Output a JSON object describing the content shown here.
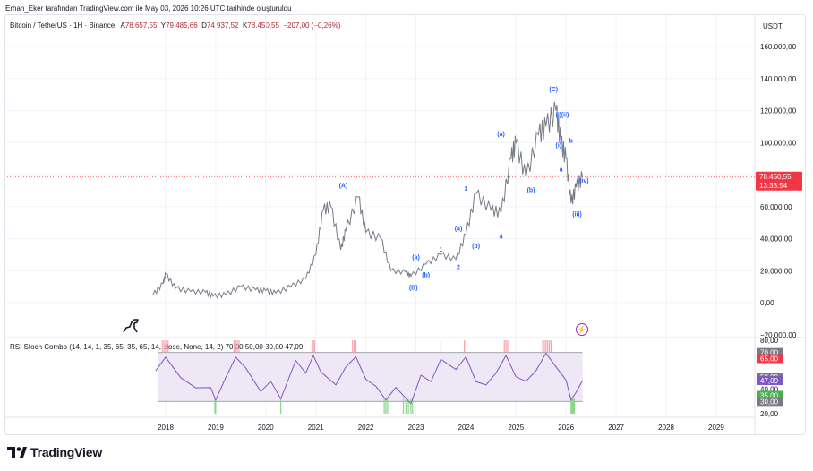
{
  "header": "Erhan_Eker tarafından TradingView.com ile May 03, 2026 10:26 UTC tarihinde oluşturuldu",
  "symbol": {
    "name": "Bitcoin / TetherUS · 1H · Binance",
    "o_label": "A",
    "o": "78.657,55",
    "h_label": "Y",
    "h": "79.485,66",
    "l_label": "D",
    "l": "74.937,52",
    "c_label": "K",
    "c": "78.450,55",
    "change": "−207,00 (−0,26%)"
  },
  "currency": "USDT",
  "indicator_legend": "RSI Stoch Combo (14, 14, 1, 35, 65, 35, 65, 14, close, None, 14, 2)  70,00  50,00  30,00  47,09",
  "branding": "TradingView",
  "colors": {
    "price_line": "#787b86",
    "last_price": "#f23645",
    "rsi_line": "#7e57c2",
    "band_fill": "#ede7f6",
    "wave": "#2962ff",
    "ob": "#f7a5ab",
    "os": "#8bd68b"
  },
  "chart_data": [
    {
      "type": "line",
      "ylim": [
        -20000,
        160000
      ],
      "y_ticks": [
        "160.000,00",
        "140.000,00",
        "120.000,00",
        "100.000,00",
        "80.000,00",
        "60.000,00",
        "40.000,00",
        "20.000,00",
        "0,00",
        "−20.000,00"
      ],
      "x_ticks": [
        "2018",
        "2019",
        "2020",
        "2021",
        "2022",
        "2023",
        "2024",
        "2025",
        "2026",
        "2027",
        "2028",
        "2029"
      ],
      "last_price": {
        "label": "78.450,55",
        "countdown": "13:33:54",
        "value": 78450
      },
      "series": [
        {
          "x": [
            2017.75,
            2017.95,
            2018.0,
            2018.2,
            2018.5,
            2018.8,
            2018.95,
            2019.2,
            2019.5,
            2019.8,
            2020.0,
            2020.2,
            2020.5,
            2020.8,
            2021.0,
            2021.15,
            2021.3,
            2021.5,
            2021.6,
            2021.85,
            2022.0,
            2022.3,
            2022.5,
            2022.8,
            2022.9,
            2023.2,
            2023.5,
            2023.8,
            2024.0,
            2024.2,
            2024.5,
            2024.7,
            2024.9,
            2025.0,
            2025.2,
            2025.45,
            2025.6,
            2025.8,
            2025.9,
            2026.0,
            2026.1,
            2026.2,
            2026.33
          ],
          "values": [
            5000,
            12000,
            18000,
            9000,
            7000,
            6500,
            4000,
            5000,
            10000,
            8000,
            7500,
            6000,
            10000,
            15000,
            30000,
            58000,
            60000,
            33000,
            45000,
            66000,
            44000,
            40000,
            20000,
            19000,
            16500,
            24000,
            30000,
            27000,
            43000,
            68000,
            58000,
            56000,
            90000,
            100000,
            78000,
            105000,
            110000,
            120000,
            100000,
            90000,
            62000,
            72000,
            78450
          ]
        }
      ],
      "wave_labels": [
        {
          "t": "(A)",
          "x": 2021.55,
          "y": 72000
        },
        {
          "t": "(a)",
          "x": 2023.0,
          "y": 27000
        },
        {
          "t": "(b)",
          "x": 2023.2,
          "y": 16000
        },
        {
          "t": "(B)",
          "x": 2022.95,
          "y": 8000
        },
        {
          "t": "1",
          "x": 2023.5,
          "y": 32000
        },
        {
          "t": "2",
          "x": 2023.85,
          "y": 21000
        },
        {
          "t": "(a)",
          "x": 2023.85,
          "y": 45000
        },
        {
          "t": "(b)",
          "x": 2024.2,
          "y": 34000
        },
        {
          "t": "3",
          "x": 2024.0,
          "y": 70000
        },
        {
          "t": "4",
          "x": 2024.7,
          "y": 40000
        },
        {
          "t": "(a)",
          "x": 2024.7,
          "y": 104000
        },
        {
          "t": "(b)",
          "x": 2025.3,
          "y": 69000
        },
        {
          "t": "(C)",
          "x": 2025.75,
          "y": 132000
        },
        {
          "t": "(i)",
          "x": 2025.85,
          "y": 116000
        },
        {
          "t": "(ii)",
          "x": 2025.98,
          "y": 116000
        },
        {
          "t": "b",
          "x": 2026.1,
          "y": 100000
        },
        {
          "t": "(i)",
          "x": 2025.85,
          "y": 97000
        },
        {
          "t": "a",
          "x": 2025.9,
          "y": 82000
        },
        {
          "t": "(iii)",
          "x": 2026.22,
          "y": 54000
        },
        {
          "t": "(iv)",
          "x": 2026.36,
          "y": 75000
        }
      ]
    },
    {
      "type": "line",
      "ylim": [
        20,
        80
      ],
      "y_ticks": [
        "80,00",
        "70,00",
        "65,00",
        "50,00",
        "47,09",
        "40,00",
        "35,00",
        "30,00",
        "20,00"
      ],
      "levels": [
        70,
        65,
        50,
        35,
        30
      ],
      "current": 47.09,
      "series": [
        {
          "x": [
            2017.8,
            2018.0,
            2018.3,
            2018.6,
            2018.9,
            2019.0,
            2019.2,
            2019.4,
            2019.6,
            2019.9,
            2020.1,
            2020.3,
            2020.6,
            2020.8,
            2020.95,
            2021.1,
            2021.4,
            2021.6,
            2021.8,
            2022.0,
            2022.2,
            2022.4,
            2022.6,
            2022.9,
            2023.1,
            2023.3,
            2023.5,
            2023.8,
            2024.0,
            2024.2,
            2024.4,
            2024.6,
            2024.8,
            2025.0,
            2025.2,
            2025.4,
            2025.6,
            2025.8,
            2026.0,
            2026.1,
            2026.2,
            2026.33
          ],
          "values": [
            55,
            68,
            48,
            43,
            40,
            33,
            48,
            68,
            56,
            40,
            45,
            34,
            62,
            55,
            66,
            56,
            42,
            60,
            65,
            50,
            41,
            33,
            40,
            30,
            50,
            48,
            63,
            58,
            65,
            48,
            42,
            55,
            66,
            52,
            45,
            57,
            68,
            60,
            46,
            33,
            36,
            47.09
          ]
        }
      ]
    }
  ]
}
